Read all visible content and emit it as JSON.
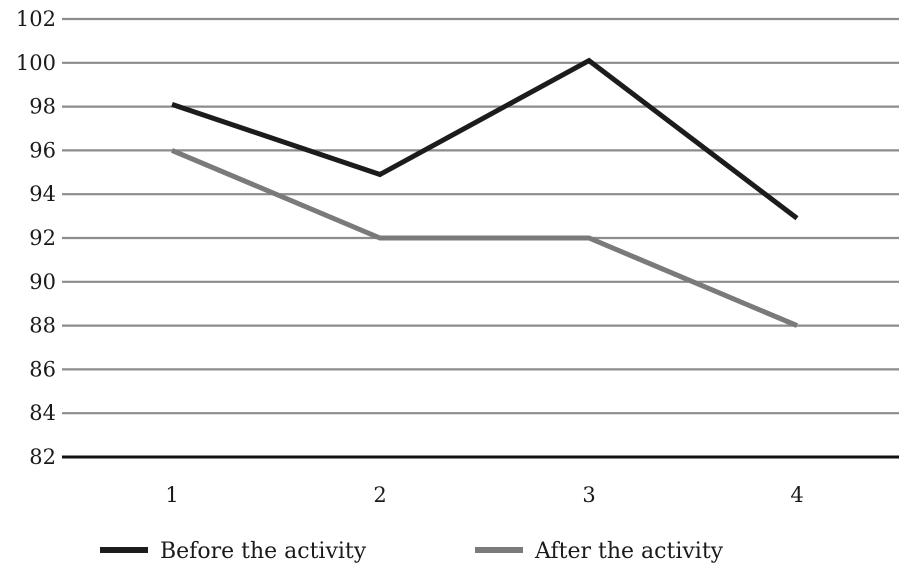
{
  "chart_data": {
    "type": "line",
    "title": "",
    "xlabel": "",
    "ylabel": "",
    "x": [
      1,
      2,
      3,
      4
    ],
    "x_tick_labels": [
      "1",
      "2",
      "3",
      "4"
    ],
    "y_tick_labels": [
      "82",
      "84",
      "86",
      "88",
      "90",
      "92",
      "94",
      "96",
      "98",
      "100",
      "102"
    ],
    "ylim": [
      82,
      102
    ],
    "y_tick_step": 2,
    "grid": "horizontal",
    "legend": "bottom",
    "series": [
      {
        "name": "Before the activity",
        "values": [
          98.1,
          94.9,
          100.1,
          92.9
        ],
        "color": "#1c1c1c"
      },
      {
        "name": "After the activity",
        "values": [
          96,
          92,
          92,
          88
        ],
        "color": "#7a7a7a"
      }
    ]
  }
}
